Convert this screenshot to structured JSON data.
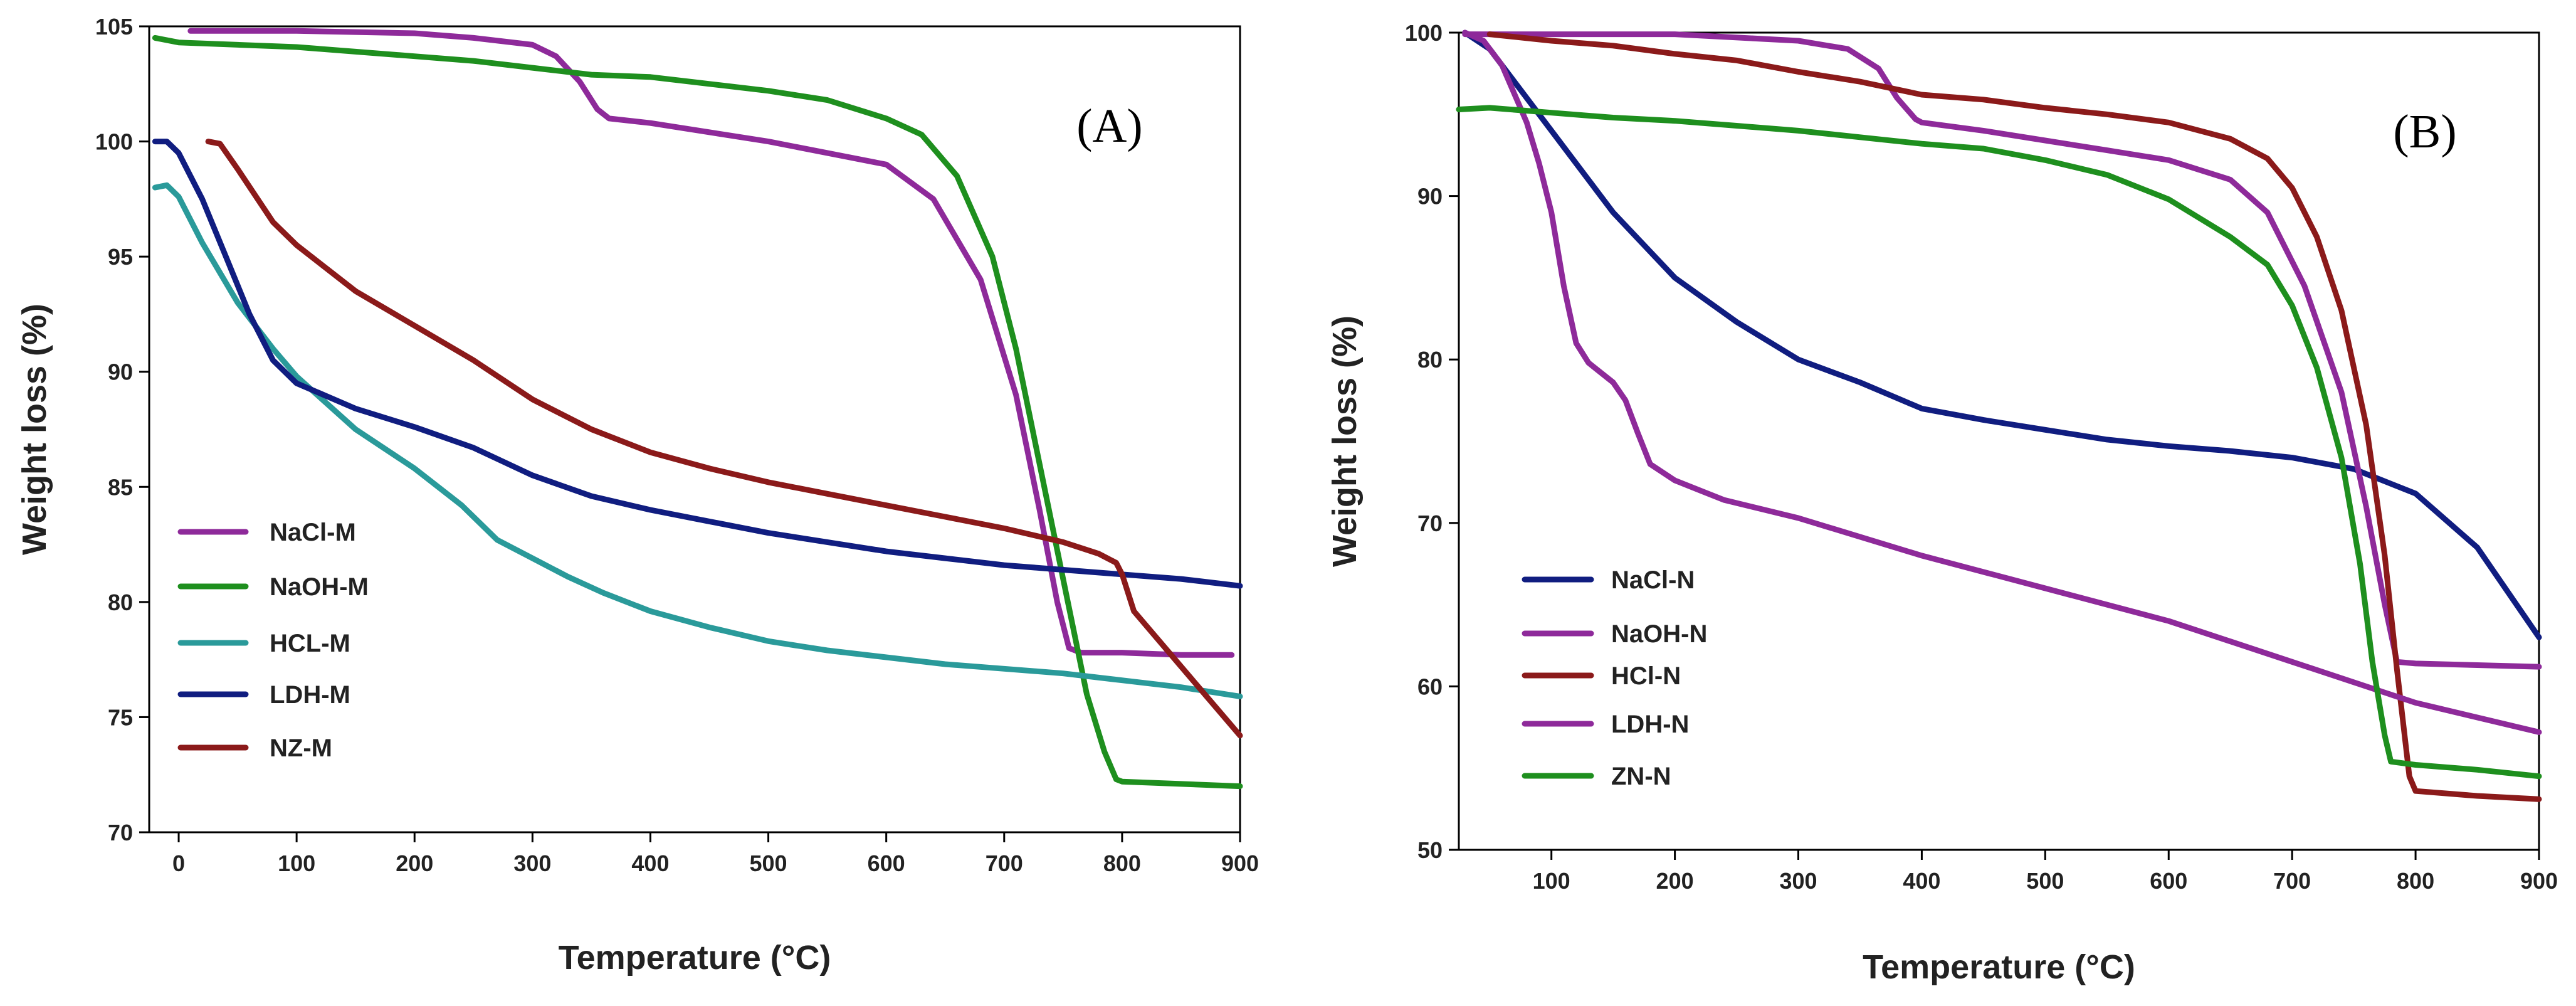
{
  "chart_data": [
    {
      "type": "line",
      "panel_label": "(A)",
      "xlabel": "Temperature (°C)",
      "ylabel": "Weight loss (%)",
      "xlim": [
        -25,
        900
      ],
      "ylim": [
        70,
        105
      ],
      "xticks": [
        0,
        100,
        200,
        300,
        400,
        500,
        600,
        700,
        800,
        900
      ],
      "yticks": [
        70,
        75,
        80,
        85,
        90,
        95,
        100,
        105
      ],
      "grid": false,
      "legend_position": "lower-left",
      "series": [
        {
          "name": "NaCl-M",
          "color": "#8E2A9A",
          "x": [
            10,
            100,
            200,
            250,
            300,
            320,
            340,
            355,
            365,
            400,
            500,
            600,
            640,
            680,
            710,
            730,
            745,
            755,
            760,
            765,
            800,
            850,
            893
          ],
          "y": [
            104.8,
            104.8,
            104.7,
            104.5,
            104.2,
            103.7,
            102.6,
            101.4,
            101.0,
            100.8,
            100.0,
            99.0,
            97.5,
            94.0,
            89.0,
            84.0,
            80.0,
            78.0,
            77.9,
            77.8,
            77.8,
            77.7,
            77.7
          ]
        },
        {
          "name": "NaOH-M",
          "color": "#1E8F1E",
          "x": [
            -20,
            0,
            50,
            100,
            150,
            200,
            250,
            300,
            350,
            400,
            450,
            500,
            550,
            600,
            630,
            660,
            690,
            710,
            730,
            750,
            770,
            785,
            795,
            800,
            850,
            900
          ],
          "y": [
            104.5,
            104.3,
            104.2,
            104.1,
            103.9,
            103.7,
            103.5,
            103.2,
            102.9,
            102.8,
            102.5,
            102.2,
            101.8,
            101.0,
            100.3,
            98.5,
            95.0,
            91.0,
            86.0,
            81.0,
            76.0,
            73.5,
            72.3,
            72.2,
            72.1,
            72.0
          ]
        },
        {
          "name": "HCL-M",
          "color": "#2A9A9A",
          "x": [
            -20,
            -10,
            0,
            20,
            50,
            80,
            100,
            150,
            200,
            240,
            270,
            300,
            330,
            360,
            400,
            450,
            500,
            550,
            600,
            650,
            700,
            750,
            800,
            850,
            900
          ],
          "y": [
            98.0,
            98.1,
            97.6,
            95.6,
            93.0,
            91.0,
            89.8,
            87.5,
            85.8,
            84.2,
            82.7,
            81.9,
            81.1,
            80.4,
            79.6,
            78.9,
            78.3,
            77.9,
            77.6,
            77.3,
            77.1,
            76.9,
            76.6,
            76.3,
            75.9
          ]
        },
        {
          "name": "LDH-M",
          "color": "#101D80",
          "x": [
            -20,
            -10,
            0,
            20,
            40,
            60,
            80,
            100,
            150,
            200,
            250,
            300,
            350,
            400,
            450,
            500,
            550,
            600,
            650,
            700,
            750,
            800,
            850,
            900
          ],
          "y": [
            100.0,
            100.0,
            99.5,
            97.5,
            95.0,
            92.5,
            90.5,
            89.5,
            88.4,
            87.6,
            86.7,
            85.5,
            84.6,
            84.0,
            83.5,
            83.0,
            82.6,
            82.2,
            81.9,
            81.6,
            81.4,
            81.2,
            81.0,
            80.7
          ]
        },
        {
          "name": "NZ-M",
          "color": "#8B1A1A",
          "x": [
            25,
            35,
            50,
            80,
            100,
            150,
            200,
            250,
            300,
            350,
            400,
            450,
            500,
            550,
            600,
            650,
            700,
            750,
            780,
            795,
            800,
            810,
            850,
            900
          ],
          "y": [
            100.0,
            99.9,
            98.8,
            96.5,
            95.5,
            93.5,
            92.0,
            90.5,
            88.8,
            87.5,
            86.5,
            85.8,
            85.2,
            84.7,
            84.2,
            83.7,
            83.2,
            82.6,
            82.1,
            81.7,
            81.2,
            79.6,
            77.2,
            74.2
          ]
        }
      ],
      "legend": [
        "NaCl-M",
        "NaOH-M",
        "HCL-M",
        "LDH-M",
        "NZ-M"
      ]
    },
    {
      "type": "line",
      "panel_label": "(B)",
      "xlabel": "Temperature (°C)",
      "ylabel": "Weight loss (%)",
      "xlim": [
        25,
        900
      ],
      "ylim": [
        50,
        100
      ],
      "xticks": [
        100,
        200,
        300,
        400,
        500,
        600,
        700,
        800,
        900
      ],
      "yticks": [
        50,
        60,
        70,
        80,
        90,
        100
      ],
      "grid": false,
      "legend_position": "lower-left",
      "series": [
        {
          "name": "NaCl-N",
          "color": "#101D80",
          "x": [
            30,
            50,
            70,
            100,
            150,
            200,
            250,
            300,
            350,
            400,
            450,
            500,
            550,
            600,
            650,
            700,
            750,
            800,
            850,
            900
          ],
          "y": [
            100.0,
            99.0,
            97.0,
            94.0,
            89.0,
            85.0,
            82.3,
            80.0,
            78.6,
            77.0,
            76.3,
            75.7,
            75.1,
            74.7,
            74.4,
            74.0,
            73.3,
            71.8,
            68.5,
            63.0
          ]
        },
        {
          "name": "NaOH-N",
          "color": "#8E2A9A",
          "x": [
            30,
            100,
            200,
            300,
            340,
            365,
            380,
            395,
            400,
            450,
            500,
            550,
            600,
            650,
            680,
            710,
            740,
            760,
            775,
            785,
            800,
            850,
            900
          ],
          "y": [
            99.9,
            99.9,
            99.9,
            99.5,
            99.0,
            97.8,
            96.0,
            94.7,
            94.5,
            94.0,
            93.4,
            92.8,
            92.2,
            91.0,
            89.0,
            84.5,
            78.0,
            71.0,
            65.0,
            61.5,
            61.4,
            61.3,
            61.2
          ]
        },
        {
          "name": "HCl-N",
          "color": "#8B1A1A",
          "x": [
            50,
            100,
            150,
            200,
            250,
            300,
            350,
            400,
            450,
            500,
            550,
            600,
            650,
            680,
            700,
            720,
            740,
            760,
            775,
            785,
            795,
            800,
            850,
            900
          ],
          "y": [
            99.9,
            99.5,
            99.2,
            98.7,
            98.3,
            97.6,
            97.0,
            96.2,
            95.9,
            95.4,
            95.0,
            94.5,
            93.5,
            92.3,
            90.5,
            87.5,
            83.0,
            76.0,
            68.0,
            61.0,
            54.5,
            53.6,
            53.3,
            53.1
          ]
        },
        {
          "name": "LDH-N",
          "color": "#8E2A9A",
          "x": [
            30,
            45,
            60,
            80,
            90,
            100,
            110,
            120,
            130,
            150,
            160,
            170,
            180,
            200,
            220,
            240,
            300,
            400,
            500,
            600,
            700,
            800,
            900
          ],
          "y": [
            100.0,
            99.5,
            98.0,
            94.5,
            92.0,
            89.0,
            84.5,
            81.0,
            79.8,
            78.6,
            77.5,
            75.5,
            73.6,
            72.6,
            72.0,
            71.4,
            70.3,
            68.0,
            66.0,
            64.0,
            61.5,
            59.0,
            57.2
          ]
        },
        {
          "name": "ZN-N",
          "color": "#1E8F1E",
          "x": [
            25,
            50,
            100,
            150,
            200,
            250,
            300,
            350,
            400,
            450,
            500,
            550,
            600,
            650,
            680,
            700,
            720,
            740,
            755,
            765,
            775,
            780,
            790,
            800,
            850,
            900
          ],
          "y": [
            95.3,
            95.4,
            95.1,
            94.8,
            94.6,
            94.3,
            94.0,
            93.6,
            93.2,
            92.9,
            92.2,
            91.3,
            89.8,
            87.5,
            85.8,
            83.3,
            79.5,
            74.0,
            67.5,
            61.5,
            57.0,
            55.4,
            55.3,
            55.2,
            54.9,
            54.5
          ]
        }
      ],
      "legend": [
        "NaCl-N",
        "NaOH-N",
        "HCl-N",
        "LDH-N",
        "ZN-N"
      ]
    }
  ]
}
